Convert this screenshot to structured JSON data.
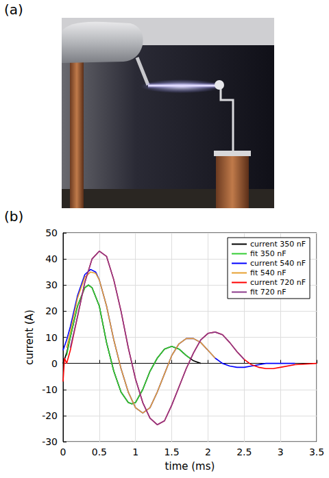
{
  "panel_labels": [
    "(a)",
    "(b)"
  ],
  "chart_data": {
    "type": "line",
    "x_label": "time (ms)",
    "y_label": "current (A)",
    "xlim": [
      0,
      3.5
    ],
    "xticks": [
      0,
      0.5,
      1,
      1.5,
      2,
      2.5,
      3,
      3.5
    ],
    "ylim": [
      -30,
      50
    ],
    "yticks": [
      -30,
      -20,
      -10,
      0,
      10,
      20,
      30,
      40,
      50
    ],
    "grid": true,
    "legend": "upper right",
    "line_style": "solid",
    "series": [
      {
        "name": "current 350 nF",
        "color": "#000000",
        "x": [
          0,
          0.05,
          0.1,
          0.2,
          0.3,
          0.35,
          0.4,
          0.5,
          0.6,
          0.7,
          0.8,
          0.9,
          0.95,
          1.0,
          1.1,
          1.2,
          1.3,
          1.4,
          1.5,
          1.6,
          1.7,
          1.8,
          1.9
        ],
        "values": [
          0,
          4,
          10,
          22,
          29,
          30,
          29,
          22,
          8,
          -3,
          -11,
          -15,
          -15.5,
          -15,
          -10,
          -3,
          2,
          5.5,
          6.5,
          5.5,
          3,
          1,
          0
        ]
      },
      {
        "name": "fit 350 nF",
        "color": "#33cc33",
        "x": [
          0.05,
          0.1,
          0.2,
          0.3,
          0.35,
          0.4,
          0.5,
          0.6,
          0.7,
          0.8,
          0.9,
          0.95,
          1.0,
          1.1,
          1.2,
          1.3,
          1.4,
          1.5,
          1.6,
          1.7,
          1.75
        ],
        "values": [
          3,
          10,
          22,
          29,
          30,
          29,
          22,
          8,
          -3,
          -11,
          -15,
          -15.5,
          -15,
          -10,
          -3,
          2,
          5.5,
          6.5,
          5.5,
          3,
          2
        ]
      },
      {
        "name": "current 540 nF",
        "color": "#0000ff",
        "x": [
          0,
          0.05,
          0.1,
          0.2,
          0.3,
          0.38,
          0.45,
          0.5,
          0.6,
          0.7,
          0.8,
          0.9,
          1.0,
          1.1,
          1.2,
          1.3,
          1.4,
          1.5,
          1.6,
          1.7,
          1.8,
          1.9,
          2.0,
          2.1,
          2.2,
          2.3,
          2.4,
          2.5,
          2.6,
          2.8,
          3.0,
          3.2
        ],
        "values": [
          5,
          9,
          14,
          26,
          34,
          36,
          35,
          32,
          22,
          9,
          -2,
          -11,
          -17,
          -19,
          -17,
          -11,
          -4,
          3,
          7.5,
          9.5,
          9.5,
          8,
          5,
          2,
          0,
          -1,
          -1.5,
          -1.5,
          -1,
          0,
          0,
          0
        ]
      },
      {
        "name": "fit 540 nF",
        "color": "#e6a030",
        "x": [
          0.05,
          0.1,
          0.2,
          0.3,
          0.38,
          0.45,
          0.5,
          0.6,
          0.7,
          0.8,
          0.9,
          1.0,
          1.1,
          1.2,
          1.3,
          1.4,
          1.5,
          1.6,
          1.7,
          1.8,
          1.9,
          2.0,
          2.1
        ],
        "values": [
          6,
          12,
          25,
          33,
          35,
          34.5,
          32,
          22,
          9,
          -2,
          -11,
          -17,
          -19,
          -17,
          -11,
          -4,
          3,
          7.5,
          9.5,
          9.5,
          8,
          5,
          2
        ]
      },
      {
        "name": "current 720 nF",
        "color": "#ff0000",
        "x": [
          0,
          0.02,
          0.05,
          0.1,
          0.2,
          0.3,
          0.4,
          0.5,
          0.6,
          0.7,
          0.8,
          0.9,
          1.0,
          1.1,
          1.2,
          1.3,
          1.4,
          1.5,
          1.6,
          1.7,
          1.8,
          1.9,
          2.0,
          2.1,
          2.2,
          2.3,
          2.4,
          2.5,
          2.6,
          2.7,
          2.8,
          2.9,
          3.0,
          3.2,
          3.5
        ],
        "values": [
          -7,
          2,
          0,
          5,
          18,
          31,
          40,
          43,
          41,
          32,
          20,
          6,
          -6,
          -15,
          -21,
          -23.5,
          -22,
          -16,
          -9,
          -2,
          4,
          9,
          11.5,
          12,
          11,
          8,
          4.5,
          1.5,
          -0.5,
          -1.5,
          -2,
          -2,
          -1.5,
          -0.5,
          0
        ]
      },
      {
        "name": "fit 720 nF",
        "color": "#8b3a8b",
        "x": [
          0.1,
          0.2,
          0.3,
          0.4,
          0.5,
          0.6,
          0.7,
          0.8,
          0.9,
          1.0,
          1.1,
          1.2,
          1.3,
          1.4,
          1.5,
          1.6,
          1.7,
          1.8,
          1.9,
          2.0,
          2.1,
          2.2,
          2.3,
          2.4,
          2.5
        ],
        "values": [
          6,
          18,
          31,
          40,
          43,
          41,
          32,
          20,
          6,
          -6,
          -15,
          -21,
          -23.5,
          -22,
          -16,
          -9,
          -2,
          4,
          9,
          11.5,
          12,
          11,
          8,
          4.5,
          1.5
        ]
      }
    ]
  }
}
